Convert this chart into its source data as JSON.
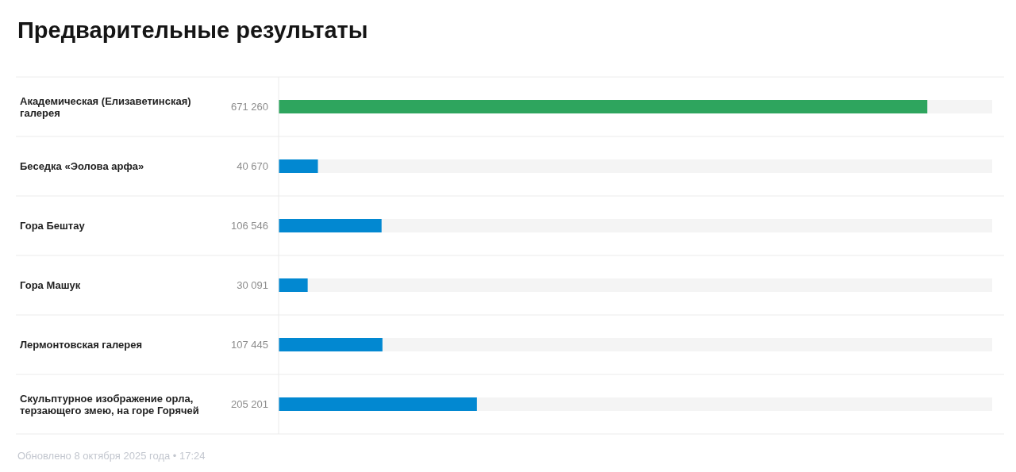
{
  "chart_data": {
    "type": "bar",
    "orientation": "horizontal",
    "title": "Предварительные результаты",
    "categories": [
      "Академическая (Елизаветинская) галерея",
      "Беседка «Эолова арфа»",
      "Гора Бештау",
      "Гора Машук",
      "Лермонтовская галерея",
      "Скульптурное изображение орла, терзающего змею, на горе Горячей"
    ],
    "values": [
      671260,
      40670,
      106546,
      30091,
      107445,
      205201
    ],
    "value_labels": [
      "671 260",
      "40 670",
      "106 546",
      "30 091",
      "107 445",
      "205 201"
    ],
    "colors": [
      "#2ea55e",
      "#0288d1",
      "#0288d1",
      "#0288d1",
      "#0288d1",
      "#0288d1"
    ],
    "grid": "y",
    "annotations": [
      "Обновлено 8 октября 2025 года • 17:24"
    ]
  }
}
